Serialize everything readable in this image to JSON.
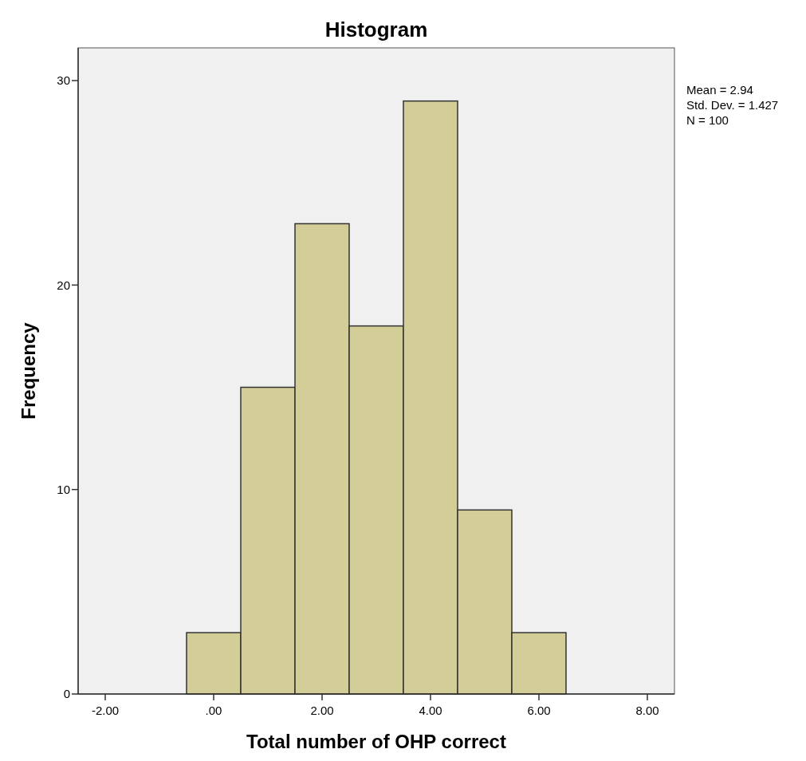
{
  "chart_data": {
    "type": "histogram",
    "title": "Histogram",
    "xlabel": "Total number of OHP correct",
    "ylabel": "Frequency",
    "bins": [
      -0.5,
      0.5,
      1.5,
      2.5,
      3.5,
      4.5,
      5.5,
      6.5
    ],
    "values": [
      3,
      15,
      23,
      18,
      29,
      9,
      3
    ],
    "color": "#d3ce97",
    "xlim": [
      -2.5,
      8.5
    ],
    "xticks": [
      {
        "value": -2,
        "label": "-2.00"
      },
      {
        "value": 0,
        "label": ".00"
      },
      {
        "value": 2,
        "label": "2.00"
      },
      {
        "value": 4,
        "label": "4.00"
      },
      {
        "value": 6,
        "label": "6.00"
      },
      {
        "value": 8,
        "label": "8.00"
      }
    ],
    "ylim": [
      0,
      31.6
    ],
    "yticks": [
      0,
      10,
      20,
      30
    ],
    "grid": false,
    "legend": false,
    "annotations": [
      "Mean = 2.94",
      "Std. Dev. = 1.427",
      "N = 100"
    ]
  }
}
